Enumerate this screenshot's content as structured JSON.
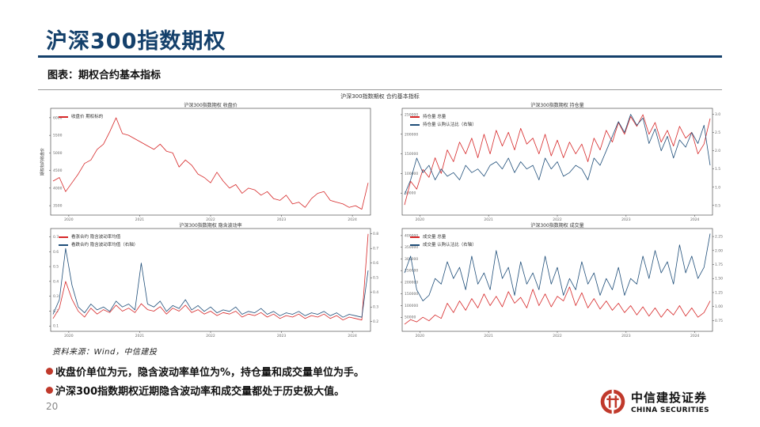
{
  "slide": {
    "title": "沪深300指数期权",
    "caption": "图表：期权合约基本指标",
    "source": "资料来源：Wind，中信建投",
    "bullets": [
      "收盘价单位为元，隐含波动率单位为%，持仓量和成交量单位为手。",
      "沪深300指数期权近期隐含波动率和成交量都处于历史极大值。"
    ],
    "page_number": "20",
    "logo": {
      "cn": "中信建投证券",
      "en": "CHINA SECURITIES",
      "icon": "citic-logo-icon"
    },
    "colors": {
      "title": "#14406b",
      "red": "#d62728",
      "blue": "#1f4e79",
      "bullet": "#c0392b"
    }
  },
  "chart_data": {
    "suptitle": "沪深300指数期权 合约基本指标",
    "panels": [
      {
        "type": "line",
        "title": "沪深300指数期权 收盘价",
        "ylabel": "期权标的收盘价",
        "x_ticks": [
          "2020",
          "2021",
          "2022",
          "2023",
          "2024"
        ],
        "y_ticks": [
          "3500",
          "4000",
          "4500",
          "5000",
          "5500",
          "6000"
        ],
        "ylim": [
          3300,
          6200
        ],
        "grid": false,
        "legend": "top-left",
        "series": [
          {
            "name": "收盘价 期权标的",
            "color": "#d62728",
            "axis": "left",
            "x": [
              0,
              2,
              4,
              6,
              8,
              10,
              12,
              14,
              16,
              18,
              20,
              22,
              24,
              26,
              28,
              30,
              32,
              34,
              36,
              38,
              40,
              42,
              44,
              46,
              48,
              50,
              52,
              54,
              56,
              58,
              60,
              62,
              64,
              66,
              68,
              70,
              72,
              74,
              76,
              78,
              80,
              82,
              84,
              86,
              88,
              90,
              92,
              94,
              96,
              98,
              100
            ],
            "values": [
              4200,
              4300,
              3900,
              4150,
              4400,
              4700,
              4800,
              5100,
              5250,
              5600,
              6000,
              5550,
              5500,
              5400,
              5300,
              5200,
              5100,
              5250,
              5050,
              5000,
              4600,
              4800,
              4650,
              4400,
              4300,
              4150,
              4450,
              4200,
              4000,
              4100,
              3850,
              4000,
              3950,
              3800,
              3900,
              3700,
              3650,
              3800,
              3550,
              3600,
              3450,
              3700,
              3850,
              3900,
              3650,
              3600,
              3550,
              3450,
              3500,
              3400,
              4150
            ]
          }
        ]
      },
      {
        "type": "line",
        "title": "沪深300指数期权 持仓量",
        "x_ticks": [
          "2020",
          "2021",
          "2022",
          "2023",
          "2024"
        ],
        "y_ticks": [
          "50000",
          "100000",
          "150000",
          "200000",
          "250000"
        ],
        "y2_ticks": [
          "0.5",
          "1.0",
          "1.5",
          "2.0",
          "2.5",
          "3.0"
        ],
        "ylim": [
          0,
          260000
        ],
        "y2lim": [
          0.3,
          3.1
        ],
        "grid": false,
        "legend": "top-left",
        "series": [
          {
            "name": "持仓量 总量",
            "color": "#d62728",
            "axis": "left",
            "x": [
              0,
              2,
              4,
              6,
              8,
              10,
              12,
              14,
              16,
              18,
              20,
              22,
              24,
              26,
              28,
              30,
              32,
              34,
              36,
              38,
              40,
              42,
              44,
              46,
              48,
              50,
              52,
              54,
              56,
              58,
              60,
              62,
              64,
              66,
              68,
              70,
              72,
              74,
              76,
              78,
              80,
              82,
              84,
              86,
              88,
              90,
              92,
              94,
              96,
              98,
              100
            ],
            "values": [
              20000,
              80000,
              60000,
              110000,
              90000,
              140000,
              100000,
              160000,
              130000,
              180000,
              150000,
              190000,
              140000,
              200000,
              150000,
              210000,
              170000,
              205000,
              160000,
              215000,
              175000,
              190000,
              150000,
              200000,
              145000,
              185000,
              140000,
              180000,
              150000,
              175000,
              130000,
              190000,
              160000,
              210000,
              180000,
              230000,
              200000,
              245000,
              220000,
              250000,
              200000,
              230000,
              180000,
              210000,
              170000,
              220000,
              190000,
              205000,
              150000,
              175000,
              240000
            ]
          },
          {
            "name": "持仓量 认购认沽比（右轴）",
            "color": "#1f4e79",
            "axis": "right",
            "x": [
              0,
              2,
              4,
              6,
              8,
              10,
              12,
              14,
              16,
              18,
              20,
              22,
              24,
              26,
              28,
              30,
              32,
              34,
              36,
              38,
              40,
              42,
              44,
              46,
              48,
              50,
              52,
              54,
              56,
              58,
              60,
              62,
              64,
              66,
              68,
              70,
              72,
              74,
              76,
              78,
              80,
              82,
              84,
              86,
              88,
              90,
              92,
              94,
              96,
              98,
              100
            ],
            "values": [
              0.8,
              1.2,
              1.8,
              1.4,
              1.6,
              1.2,
              1.5,
              1.3,
              1.4,
              1.2,
              1.6,
              1.4,
              1.5,
              1.3,
              1.6,
              1.7,
              1.5,
              1.8,
              1.4,
              1.7,
              1.5,
              1.6,
              1.2,
              1.8,
              1.5,
              1.7,
              1.3,
              1.4,
              1.6,
              1.5,
              1.2,
              1.8,
              1.6,
              2.0,
              2.4,
              2.8,
              2.5,
              3.0,
              2.7,
              2.9,
              2.2,
              2.6,
              2.0,
              2.4,
              1.8,
              2.3,
              2.1,
              2.5,
              2.2,
              2.7,
              1.6
            ]
          }
        ]
      },
      {
        "type": "line",
        "title": "沪深300指数期权 隐含波动率",
        "x_ticks": [
          "2020",
          "2021",
          "2022",
          "2023",
          "2024"
        ],
        "y_ticks": [
          "0.1",
          "0.2",
          "0.3",
          "0.4",
          "0.5",
          "0.6",
          "0.7"
        ],
        "y2_ticks": [
          "0.2",
          "0.3",
          "0.4",
          "0.5",
          "0.6",
          "0.7",
          "0.8"
        ],
        "ylim": [
          0.08,
          0.74
        ],
        "y2lim": [
          0.15,
          0.82
        ],
        "grid": false,
        "legend": "top-left",
        "series": [
          {
            "name": "看涨合约 隐含波动率均值",
            "color": "#d62728",
            "axis": "left",
            "x": [
              0,
              2,
              4,
              6,
              8,
              10,
              12,
              14,
              16,
              18,
              20,
              22,
              24,
              26,
              28,
              30,
              32,
              34,
              36,
              38,
              40,
              42,
              44,
              46,
              48,
              50,
              52,
              54,
              56,
              58,
              60,
              62,
              64,
              66,
              68,
              70,
              72,
              74,
              76,
              78,
              80,
              82,
              84,
              86,
              88,
              90,
              92,
              94,
              96,
              98,
              100
            ],
            "values": [
              0.15,
              0.22,
              0.4,
              0.28,
              0.2,
              0.16,
              0.22,
              0.18,
              0.21,
              0.19,
              0.24,
              0.2,
              0.22,
              0.19,
              0.25,
              0.21,
              0.2,
              0.23,
              0.18,
              0.22,
              0.2,
              0.24,
              0.19,
              0.21,
              0.18,
              0.2,
              0.17,
              0.19,
              0.18,
              0.2,
              0.16,
              0.18,
              0.17,
              0.19,
              0.16,
              0.18,
              0.15,
              0.17,
              0.16,
              0.18,
              0.15,
              0.17,
              0.16,
              0.18,
              0.15,
              0.17,
              0.14,
              0.16,
              0.15,
              0.14,
              0.72
            ]
          },
          {
            "name": "看跌合约 隐含波动率均值（右轴）",
            "color": "#1f4e79",
            "axis": "right",
            "x": [
              0,
              2,
              4,
              6,
              8,
              10,
              12,
              14,
              16,
              18,
              20,
              22,
              24,
              26,
              28,
              30,
              32,
              34,
              36,
              38,
              40,
              42,
              44,
              46,
              48,
              50,
              52,
              54,
              56,
              58,
              60,
              62,
              64,
              66,
              68,
              70,
              72,
              74,
              76,
              78,
              80,
              82,
              84,
              86,
              88,
              90,
              92,
              94,
              96,
              98,
              100
            ],
            "values": [
              0.25,
              0.35,
              0.7,
              0.45,
              0.3,
              0.26,
              0.32,
              0.28,
              0.3,
              0.27,
              0.34,
              0.3,
              0.32,
              0.28,
              0.6,
              0.32,
              0.3,
              0.34,
              0.27,
              0.31,
              0.29,
              0.35,
              0.28,
              0.31,
              0.27,
              0.3,
              0.26,
              0.28,
              0.27,
              0.3,
              0.25,
              0.27,
              0.26,
              0.29,
              0.25,
              0.27,
              0.24,
              0.26,
              0.25,
              0.27,
              0.24,
              0.26,
              0.25,
              0.27,
              0.24,
              0.26,
              0.23,
              0.25,
              0.24,
              0.23,
              0.55
            ]
          }
        ]
      },
      {
        "type": "line",
        "title": "沪深300指数期权 成交量",
        "x_ticks": [
          "2020",
          "2021",
          "2022",
          "2023",
          "2024"
        ],
        "y_ticks": [
          "50000",
          "100000",
          "150000",
          "200000",
          "250000",
          "300000",
          "350000",
          "400000"
        ],
        "y2_ticks": [
          "0.75",
          "1.00",
          "1.25",
          "1.50",
          "1.75",
          "2.00",
          "2.25"
        ],
        "ylim": [
          0,
          420000
        ],
        "y2lim": [
          0.6,
          2.35
        ],
        "grid": false,
        "legend": "top-left",
        "series": [
          {
            "name": "成交量 总量",
            "color": "#d62728",
            "axis": "left",
            "x": [
              0,
              2,
              4,
              6,
              8,
              10,
              12,
              14,
              16,
              18,
              20,
              22,
              24,
              26,
              28,
              30,
              32,
              34,
              36,
              38,
              40,
              42,
              44,
              46,
              48,
              50,
              52,
              54,
              56,
              58,
              60,
              62,
              64,
              66,
              68,
              70,
              72,
              74,
              76,
              78,
              80,
              82,
              84,
              86,
              88,
              90,
              92,
              94,
              96,
              98,
              100
            ],
            "values": [
              20000,
              40000,
              30000,
              50000,
              35000,
              60000,
              45000,
              110000,
              70000,
              120000,
              80000,
              130000,
              90000,
              150000,
              100000,
              140000,
              95000,
              160000,
              110000,
              135000,
              90000,
              170000,
              100000,
              150000,
              95000,
              140000,
              120000,
              180000,
              100000,
              155000,
              90000,
              130000,
              85000,
              120000,
              80000,
              110000,
              70000,
              100000,
              60000,
              95000,
              55000,
              90000,
              50000,
              85000,
              60000,
              100000,
              55000,
              90000,
              50000,
              70000,
              120000
            ]
          },
          {
            "name": "成交量 认购认沽比（右轴）",
            "color": "#1f4e79",
            "axis": "right",
            "x": [
              0,
              2,
              4,
              6,
              8,
              10,
              12,
              14,
              16,
              18,
              20,
              22,
              24,
              26,
              28,
              30,
              32,
              34,
              36,
              38,
              40,
              42,
              44,
              46,
              48,
              50,
              52,
              54,
              56,
              58,
              60,
              62,
              64,
              66,
              68,
              70,
              72,
              74,
              76,
              78,
              80,
              82,
              84,
              86,
              88,
              90,
              92,
              94,
              96,
              98,
              100
            ],
            "values": [
              1.6,
              1.9,
              1.3,
              1.1,
              1.2,
              1.5,
              1.4,
              1.8,
              1.5,
              1.7,
              1.3,
              1.9,
              1.4,
              1.6,
              1.3,
              2.0,
              1.5,
              1.7,
              1.2,
              1.8,
              1.4,
              1.6,
              1.3,
              1.9,
              1.4,
              1.7,
              1.2,
              1.5,
              1.3,
              1.8,
              1.4,
              1.6,
              1.2,
              1.5,
              1.3,
              1.7,
              1.2,
              1.5,
              1.4,
              1.9,
              1.5,
              2.0,
              1.6,
              1.8,
              1.4,
              2.1,
              1.6,
              1.9,
              1.5,
              1.7,
              2.3
            ]
          }
        ]
      }
    ]
  }
}
